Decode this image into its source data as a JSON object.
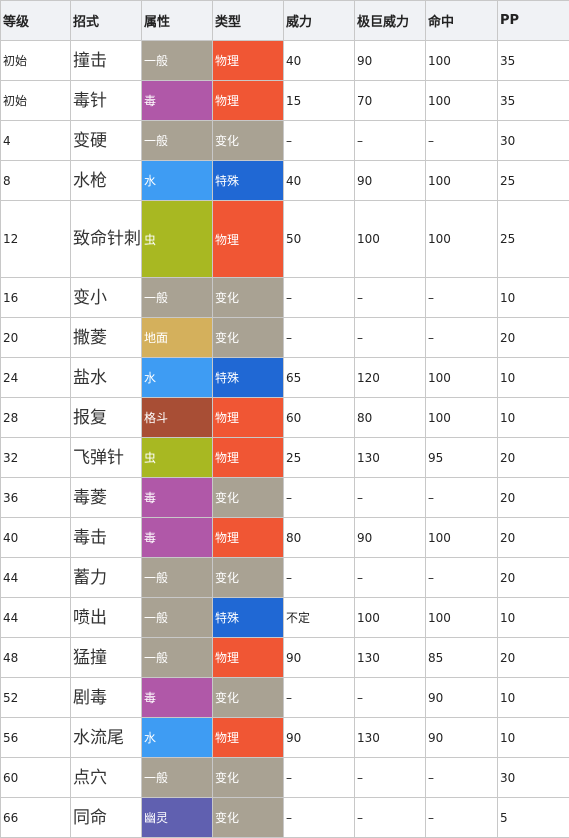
{
  "headers": [
    "等级",
    "招式",
    "属性",
    "类型",
    "威力",
    "极巨威力",
    "命中",
    "PP"
  ],
  "type_colors": {
    "一般": "#a9a293",
    "毒": "#b058a8",
    "水": "#3e9cf3",
    "虫": "#a8b822",
    "地面": "#d4b05c",
    "格斗": "#a84e35",
    "幽灵": "#6060b0"
  },
  "category_colors": {
    "物理": "#f05634",
    "变化": "#a9a293",
    "特殊": "#2068d4"
  },
  "rows": [
    {
      "level": "初始",
      "move": "撞击",
      "type": "一般",
      "category": "物理",
      "power": "40",
      "max_power": "90",
      "accuracy": "100",
      "pp": "35"
    },
    {
      "level": "初始",
      "move": "毒针",
      "type": "毒",
      "category": "物理",
      "power": "15",
      "max_power": "70",
      "accuracy": "100",
      "pp": "35"
    },
    {
      "level": "4",
      "move": "变硬",
      "type": "一般",
      "category": "变化",
      "power": "–",
      "max_power": "–",
      "accuracy": "–",
      "pp": "30"
    },
    {
      "level": "8",
      "move": "水枪",
      "type": "水",
      "category": "特殊",
      "power": "40",
      "max_power": "90",
      "accuracy": "100",
      "pp": "25"
    },
    {
      "level": "12",
      "move": "致命针刺",
      "type": "虫",
      "category": "物理",
      "power": "50",
      "max_power": "100",
      "accuracy": "100",
      "pp": "25",
      "tall": true
    },
    {
      "level": "16",
      "move": "变小",
      "type": "一般",
      "category": "变化",
      "power": "–",
      "max_power": "–",
      "accuracy": "–",
      "pp": "10"
    },
    {
      "level": "20",
      "move": "撒菱",
      "type": "地面",
      "category": "变化",
      "power": "–",
      "max_power": "–",
      "accuracy": "–",
      "pp": "20"
    },
    {
      "level": "24",
      "move": "盐水",
      "type": "水",
      "category": "特殊",
      "power": "65",
      "max_power": "120",
      "accuracy": "100",
      "pp": "10"
    },
    {
      "level": "28",
      "move": "报复",
      "type": "格斗",
      "category": "物理",
      "power": "60",
      "max_power": "80",
      "accuracy": "100",
      "pp": "10"
    },
    {
      "level": "32",
      "move": "飞弹针",
      "type": "虫",
      "category": "物理",
      "power": "25",
      "max_power": "130",
      "accuracy": "95",
      "pp": "20"
    },
    {
      "level": "36",
      "move": "毒菱",
      "type": "毒",
      "category": "变化",
      "power": "–",
      "max_power": "–",
      "accuracy": "–",
      "pp": "20"
    },
    {
      "level": "40",
      "move": "毒击",
      "type": "毒",
      "category": "物理",
      "power": "80",
      "max_power": "90",
      "accuracy": "100",
      "pp": "20"
    },
    {
      "level": "44",
      "move": "蓄力",
      "type": "一般",
      "category": "变化",
      "power": "–",
      "max_power": "–",
      "accuracy": "–",
      "pp": "20"
    },
    {
      "level": "44",
      "move": "喷出",
      "type": "一般",
      "category": "特殊",
      "power": "不定",
      "max_power": "100",
      "accuracy": "100",
      "pp": "10"
    },
    {
      "level": "48",
      "move": "猛撞",
      "type": "一般",
      "category": "物理",
      "power": "90",
      "max_power": "130",
      "accuracy": "85",
      "pp": "20"
    },
    {
      "level": "52",
      "move": "剧毒",
      "type": "毒",
      "category": "变化",
      "power": "–",
      "max_power": "–",
      "accuracy": "90",
      "pp": "10"
    },
    {
      "level": "56",
      "move": "水流尾",
      "type": "水",
      "category": "物理",
      "power": "90",
      "max_power": "130",
      "accuracy": "90",
      "pp": "10"
    },
    {
      "level": "60",
      "move": "点穴",
      "type": "一般",
      "category": "变化",
      "power": "–",
      "max_power": "–",
      "accuracy": "–",
      "pp": "30"
    },
    {
      "level": "66",
      "move": "同命",
      "type": "幽灵",
      "category": "变化",
      "power": "–",
      "max_power": "–",
      "accuracy": "–",
      "pp": "5"
    }
  ]
}
